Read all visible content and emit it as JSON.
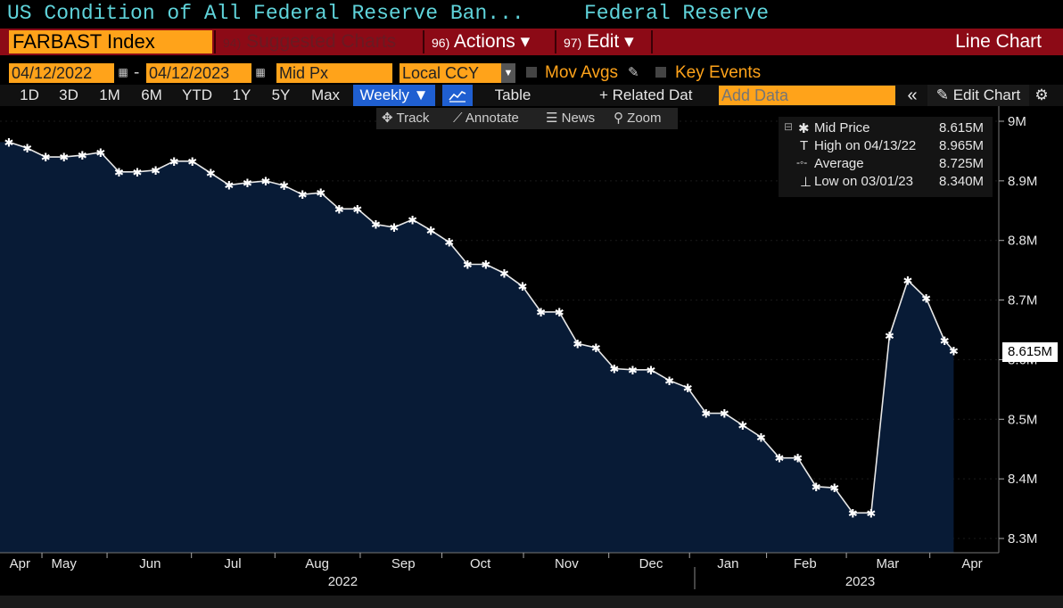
{
  "header": {
    "title": "US Condition of All Federal Reserve Ban...",
    "source": "Federal Reserve"
  },
  "menubar": {
    "ticker": "FARBAST Index",
    "suggested": {
      "num": "94)",
      "label": "Suggested Charts"
    },
    "actions": {
      "num": "96)",
      "label": "Actions ▾"
    },
    "edit": {
      "num": "97)",
      "label": "Edit ▾"
    },
    "chart_type": "Line Chart"
  },
  "options": {
    "start_date": "04/12/2022",
    "date_sep": "-",
    "end_date": "04/12/2023",
    "field": "Mid Px",
    "currency": "Local CCY",
    "mov_avgs": "Mov Avgs",
    "key_events": "Key Events"
  },
  "timeframes": {
    "items": [
      "1D",
      "3D",
      "1M",
      "6M",
      "YTD",
      "1Y",
      "5Y",
      "Max"
    ],
    "periodicity": "Weekly ▼",
    "table": "Table",
    "related": "+ Related Dat",
    "add_data_placeholder": "Add Data",
    "collapse": "«",
    "edit_chart": "Edit Chart"
  },
  "chart_toolbar": {
    "track": "Track",
    "annotate": "Annotate",
    "news": "News",
    "zoom": "Zoom"
  },
  "legend": {
    "mid_label": "Mid Price",
    "mid_value": "8.615M",
    "high_label": "High on 04/13/22",
    "high_value": "8.965M",
    "avg_label": "Average",
    "avg_value": "8.725M",
    "low_label": "Low on 03/01/23",
    "low_value": "8.340M"
  },
  "current_tag": "8.615M",
  "chart_data": {
    "type": "area",
    "title": "US Condition of All Federal Reserve Banks Total Assets",
    "xlabel": "",
    "ylabel": "",
    "ylim": [
      8.28,
      9.02
    ],
    "y_ticks": [
      {
        "value": 9.0,
        "label": "9M"
      },
      {
        "value": 8.9,
        "label": "8.9M"
      },
      {
        "value": 8.8,
        "label": "8.8M"
      },
      {
        "value": 8.7,
        "label": "8.7M"
      },
      {
        "value": 8.6,
        "label": "8.6M"
      },
      {
        "value": 8.5,
        "label": "8.5M"
      },
      {
        "value": 8.4,
        "label": "8.4M"
      },
      {
        "value": 8.3,
        "label": "8.3M"
      }
    ],
    "x_range": [
      0,
      52.5
    ],
    "x_ticks": [
      {
        "value": 0.6,
        "label": "Apr"
      },
      {
        "value": 3.0,
        "label": "May"
      },
      {
        "value": 7.7,
        "label": "Jun"
      },
      {
        "value": 12.2,
        "label": "Jul"
      },
      {
        "value": 16.8,
        "label": "Aug"
      },
      {
        "value": 21.5,
        "label": "Sep"
      },
      {
        "value": 25.7,
        "label": "Oct"
      },
      {
        "value": 30.4,
        "label": "Nov"
      },
      {
        "value": 35.0,
        "label": "Dec"
      },
      {
        "value": 39.2,
        "label": "Jan"
      },
      {
        "value": 43.4,
        "label": "Feb"
      },
      {
        "value": 47.9,
        "label": "Mar"
      },
      {
        "value": 52.5,
        "label": "Apr"
      }
    ],
    "year_labels": [
      {
        "value": 18.2,
        "label": "2022"
      },
      {
        "value": 46.4,
        "label": "2023"
      }
    ],
    "series": [
      {
        "name": "Mid Price",
        "x": [
          0,
          1,
          2,
          3,
          4,
          5,
          6,
          7,
          8,
          9,
          10,
          11,
          12,
          13,
          14,
          15,
          16,
          17,
          18,
          19,
          20,
          21,
          22,
          23,
          24,
          25,
          26,
          27,
          28,
          29,
          30,
          31,
          32,
          33,
          34,
          35,
          36,
          37,
          38,
          39,
          40,
          41,
          42,
          43,
          44,
          45,
          46,
          47,
          48,
          49,
          50,
          51
        ],
        "values": [
          8.965,
          8.955,
          8.94,
          8.94,
          8.943,
          8.948,
          8.915,
          8.915,
          8.918,
          8.933,
          8.933,
          8.913,
          8.893,
          8.897,
          8.9,
          8.892,
          8.877,
          8.88,
          8.853,
          8.853,
          8.827,
          8.822,
          8.835,
          8.817,
          8.797,
          8.76,
          8.76,
          8.745,
          8.723,
          8.68,
          8.68,
          8.627,
          8.62,
          8.585,
          8.583,
          8.583,
          8.565,
          8.553,
          8.51,
          8.51,
          8.49,
          8.47,
          8.435,
          8.435,
          8.387,
          8.385,
          8.343,
          8.343,
          8.64,
          8.733,
          8.703,
          8.632
        ]
      }
    ],
    "last_point": {
      "x": 51.5,
      "value": 8.615
    }
  }
}
